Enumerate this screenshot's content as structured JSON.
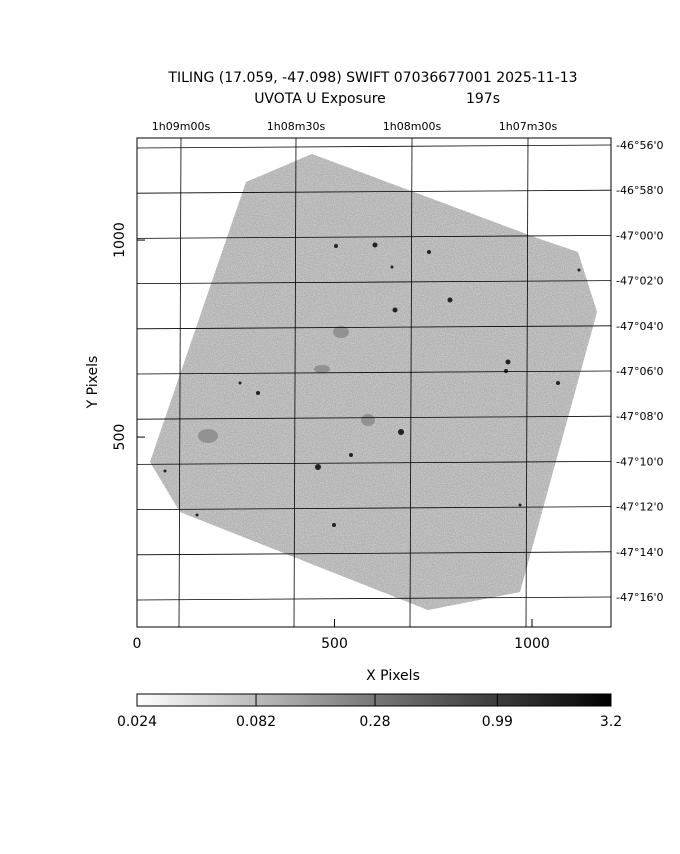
{
  "chart_data": {
    "type": "image",
    "title": "TILING (17.059, -47.098) SWIFT 07036677001 2025-11-13",
    "subtitle": "UVOTA U Exposure",
    "exposure": "197s",
    "x_label": "X Pixels",
    "y_label": "Y Pixels",
    "xlim": [
      0,
      1200
    ],
    "xticks": [
      0,
      500,
      1000
    ],
    "ylim": [
      18,
      1259
    ],
    "yticks": [
      500,
      1000
    ],
    "ra_ticks": [
      "1h09m00s",
      "1h08m30s",
      "1h08m00s",
      "1h07m30s"
    ],
    "dec_ticks": [
      "-46°56'0",
      "-46°58'0",
      "-47°00'0",
      "-47°02'0",
      "-47°04'0",
      "-47°06'0",
      "-47°08'0",
      "-47°10'0",
      "-47°12'0",
      "-47°14'0",
      "-47°16'0"
    ],
    "colorbar": {
      "lim": [
        0.024,
        3.2
      ],
      "ticks": [
        0.024,
        0.082,
        0.28,
        0.99,
        3.2
      ],
      "log": true
    }
  }
}
